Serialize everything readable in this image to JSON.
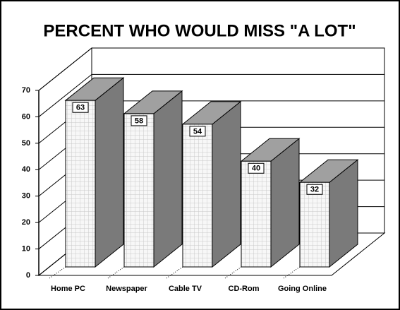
{
  "chart_data": {
    "type": "bar3d",
    "title": "PERCENT WHO WOULD MISS \"A LOT\"",
    "categories": [
      "Home PC",
      "Newspaper",
      "Cable TV",
      "CD-Rom",
      "Going Online"
    ],
    "values": [
      63,
      58,
      54,
      40,
      32
    ],
    "ylim": [
      0,
      70
    ],
    "yticks": [
      0,
      10,
      20,
      30,
      40,
      50,
      60,
      70
    ],
    "grid": true,
    "colors": {
      "front": "#f4f4f4",
      "side": "#7a7a7a",
      "top": "#a0a0a0"
    }
  }
}
